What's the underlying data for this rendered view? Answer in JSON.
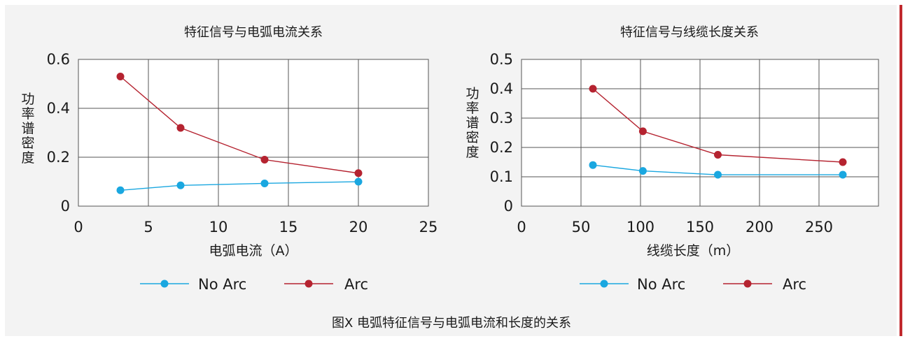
{
  "caption": "图X 电弧特征信号与电弧电流和长度的关系",
  "colors": {
    "no_arc": "#1aa7e0",
    "arc": "#b52330",
    "accent": "#c0282d"
  },
  "legend": {
    "no_arc": "No Arc",
    "arc": "Arc"
  },
  "chart_data": [
    {
      "type": "line",
      "title": "特征信号与电弧电流关系",
      "xlabel": "电弧电流（A）",
      "ylabel": "功率谱密度",
      "xlim": [
        0,
        25
      ],
      "ylim": [
        0,
        0.6
      ],
      "xticks": [
        0,
        5,
        10,
        15,
        20,
        25
      ],
      "yticks": [
        0,
        0.2,
        0.4,
        0.6
      ],
      "ytick_labels": [
        "0",
        "0.2",
        "0.4",
        "0.6"
      ],
      "grid": true,
      "legend_position": "bottom",
      "series": [
        {
          "name": "No Arc",
          "color": "#1aa7e0",
          "x": [
            3,
            7.3,
            13.3,
            20
          ],
          "y": [
            0.065,
            0.085,
            0.093,
            0.1
          ]
        },
        {
          "name": "Arc",
          "color": "#b52330",
          "x": [
            3,
            7.3,
            13.3,
            20
          ],
          "y": [
            0.53,
            0.32,
            0.19,
            0.135
          ]
        }
      ]
    },
    {
      "type": "line",
      "title": "特征信号与线缆长度关系",
      "xlabel": "线缆长度（m）",
      "ylabel": "功率谱密度",
      "xlim": [
        0,
        300
      ],
      "ylim": [
        0,
        0.5
      ],
      "xticks": [
        0,
        50,
        100,
        150,
        200,
        250
      ],
      "yticks": [
        0,
        0.1,
        0.2,
        0.3,
        0.4,
        0.5
      ],
      "ytick_labels": [
        "0",
        "0.1",
        "0.2",
        "0.3",
        "0.4",
        "0.5"
      ],
      "grid": true,
      "legend_position": "bottom",
      "series": [
        {
          "name": "No Arc",
          "color": "#1aa7e0",
          "x": [
            60,
            102,
            165,
            270
          ],
          "y": [
            0.14,
            0.12,
            0.107,
            0.107
          ]
        },
        {
          "name": "Arc",
          "color": "#b52330",
          "x": [
            60,
            102,
            165,
            270
          ],
          "y": [
            0.4,
            0.255,
            0.175,
            0.15
          ]
        }
      ]
    }
  ]
}
